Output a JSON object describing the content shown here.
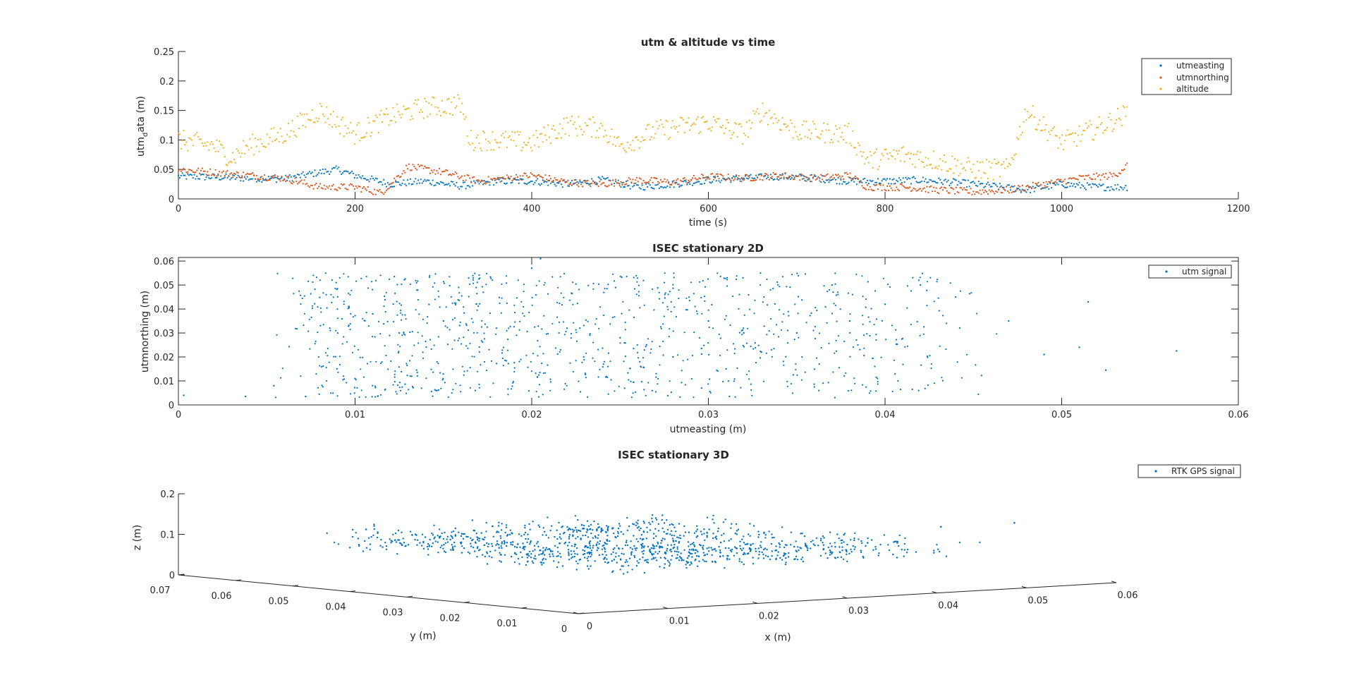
{
  "colors": {
    "blue": "#0072BD",
    "orange": "#D95319",
    "yellow": "#EDB120",
    "axis": "#262626",
    "background": "#ffffff"
  },
  "chart_data": [
    {
      "type": "scatter",
      "title": "utm & altitude vs time",
      "xlabel": "time (s)",
      "ylabel": "utm",
      "ylabel_sub": "d",
      "ylabel_rest": "ata (m)",
      "xlim": [
        0,
        1200
      ],
      "ylim": [
        0,
        0.25
      ],
      "xticks": [
        "0",
        "200",
        "400",
        "600",
        "800",
        "1000",
        "1200"
      ],
      "yticks": [
        "0",
        "0.05",
        "0.1",
        "0.15",
        "0.2",
        "0.25"
      ],
      "grid": false,
      "legend_position": "top-right",
      "series": [
        {
          "name": "utmeasting",
          "color": "#0072BD",
          "x": [
            0,
            40,
            80,
            120,
            160,
            180,
            200,
            240,
            280,
            320,
            360,
            400,
            440,
            480,
            520,
            560,
            600,
            640,
            680,
            720,
            760,
            800,
            840,
            880,
            920,
            960,
            1000,
            1040,
            1075
          ],
          "y": [
            0.038,
            0.037,
            0.035,
            0.034,
            0.045,
            0.05,
            0.04,
            0.025,
            0.03,
            0.022,
            0.03,
            0.03,
            0.025,
            0.032,
            0.02,
            0.025,
            0.032,
            0.035,
            0.038,
            0.035,
            0.03,
            0.03,
            0.032,
            0.028,
            0.022,
            0.015,
            0.025,
            0.02,
            0.02
          ]
        },
        {
          "name": "utmnorthing",
          "color": "#D95319",
          "x": [
            0,
            40,
            80,
            120,
            160,
            200,
            230,
            260,
            300,
            340,
            400,
            440,
            480,
            520,
            560,
            600,
            640,
            680,
            720,
            760,
            780,
            820,
            860,
            900,
            940,
            980,
            1020,
            1060,
            1075
          ],
          "y": [
            0.05,
            0.045,
            0.04,
            0.035,
            0.02,
            0.02,
            0.01,
            0.055,
            0.045,
            0.03,
            0.04,
            0.028,
            0.025,
            0.032,
            0.028,
            0.038,
            0.035,
            0.04,
            0.035,
            0.04,
            0.02,
            0.02,
            0.015,
            0.012,
            0.015,
            0.025,
            0.035,
            0.04,
            0.058
          ]
        },
        {
          "name": "altitude",
          "color": "#EDB120",
          "x": [
            0,
            40,
            60,
            80,
            120,
            160,
            200,
            240,
            280,
            320,
            330,
            360,
            400,
            440,
            480,
            500,
            540,
            600,
            640,
            660,
            700,
            760,
            780,
            820,
            860,
            900,
            940,
            960,
            1000,
            1040,
            1075
          ],
          "y": [
            0.1,
            0.09,
            0.07,
            0.09,
            0.11,
            0.15,
            0.11,
            0.14,
            0.155,
            0.16,
            0.1,
            0.1,
            0.095,
            0.125,
            0.12,
            0.09,
            0.115,
            0.13,
            0.11,
            0.15,
            0.115,
            0.11,
            0.065,
            0.075,
            0.065,
            0.05,
            0.05,
            0.15,
            0.095,
            0.12,
            0.145
          ]
        }
      ]
    },
    {
      "type": "scatter",
      "title": "ISEC stationary 2D",
      "xlabel": "utmeasting (m)",
      "ylabel": "utmnorthing (m)",
      "xlim": [
        0,
        0.06
      ],
      "ylim": [
        0,
        0.0615
      ],
      "xticks": [
        "0",
        "0.01",
        "0.02",
        "0.03",
        "0.04",
        "0.05",
        "0.06"
      ],
      "yticks": [
        "0",
        "0.01",
        "0.02",
        "0.03",
        "0.04",
        "0.05",
        "0.06"
      ],
      "grid": false,
      "legend_position": "top-right",
      "series": [
        {
          "name": "utm signal",
          "color": "#0072BD",
          "x": [
            0.0003,
            0.0038,
            0.0054,
            0.0072,
            0.01,
            0.011,
            0.0125,
            0.015,
            0.018,
            0.02,
            0.0205,
            0.022,
            0.025,
            0.0265,
            0.028,
            0.03,
            0.031,
            0.032,
            0.033,
            0.035,
            0.037,
            0.038,
            0.04,
            0.042,
            0.044,
            0.047,
            0.049,
            0.051,
            0.0515,
            0.0525,
            0.0565
          ],
          "y": [
            0.004,
            0.0035,
            0.008,
            0.0035,
            0.011,
            0.038,
            0.03,
            0.035,
            0.032,
            0.057,
            0.061,
            0.032,
            0.028,
            0.025,
            0.02,
            0.035,
            0.015,
            0.03,
            0.022,
            0.03,
            0.05,
            0.035,
            0.042,
            0.05,
            0.045,
            0.035,
            0.021,
            0.024,
            0.043,
            0.0145,
            0.0225
          ]
        }
      ]
    },
    {
      "type": "scatter",
      "title": "ISEC stationary 3D",
      "xlabel": "x (m)",
      "ylabel": "y (m)",
      "zlabel": "z (m)",
      "xlim": [
        0,
        0.06
      ],
      "ylim": [
        0,
        0.07
      ],
      "zlim": [
        0,
        0.2
      ],
      "xticks": [
        "0",
        "0.01",
        "0.02",
        "0.03",
        "0.04",
        "0.05",
        "0.06"
      ],
      "yticks": [
        "0",
        "0.01",
        "0.02",
        "0.03",
        "0.04",
        "0.05",
        "0.06",
        "0.07"
      ],
      "zticks": [
        "0",
        "0.1",
        "0.2"
      ],
      "grid": false,
      "legend_position": "top-right",
      "series": [
        {
          "name": "RTK GPS signal",
          "color": "#0072BD",
          "x": [
            0.005,
            0.01,
            0.015,
            0.02,
            0.025,
            0.03,
            0.035,
            0.04,
            0.045,
            0.05,
            0.055
          ],
          "y": [
            0.045,
            0.04,
            0.035,
            0.03,
            0.025,
            0.03,
            0.03,
            0.025,
            0.02,
            0.015,
            0.01
          ],
          "z": [
            0.14,
            0.12,
            0.11,
            0.1,
            0.1,
            0.1,
            0.09,
            0.08,
            0.09,
            0.13,
            0.14
          ]
        }
      ]
    }
  ]
}
